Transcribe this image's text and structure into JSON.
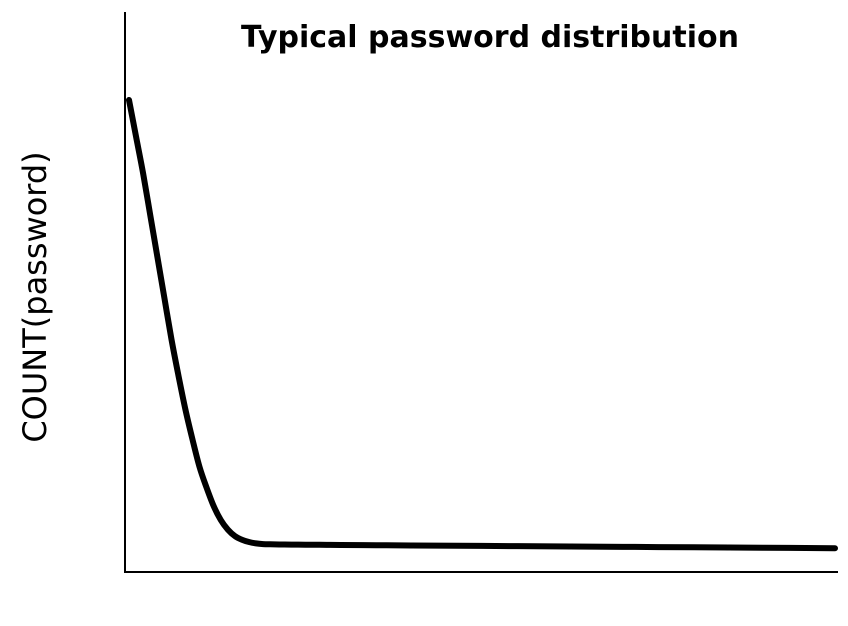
{
  "chart_data": {
    "type": "line",
    "title": "Typical password distribution",
    "xlabel": "",
    "ylabel": "COUNT(password)",
    "grid": false,
    "legend": "none",
    "xlim": [
      0,
      100
    ],
    "ylim": [
      0,
      100
    ],
    "series": [
      {
        "color": "#000000",
        "x": [
          0,
          1,
          2,
          3,
          4,
          5,
          6,
          7,
          8,
          9,
          10,
          11,
          12,
          13,
          14,
          15,
          16,
          17,
          18,
          19,
          20,
          22,
          24,
          26,
          28,
          30,
          35,
          40,
          50,
          60,
          70,
          80,
          90,
          100
        ],
        "y": [
          100,
          92,
          84,
          75,
          66,
          57,
          48,
          40,
          32.5,
          26,
          20,
          15.5,
          11.5,
          8.5,
          6.4,
          5.0,
          4.2,
          3.7,
          3.4,
          3.25,
          3.2,
          3.15,
          3.12,
          3.1,
          3.08,
          3.05,
          3.0,
          2.95,
          2.85,
          2.75,
          2.65,
          2.55,
          2.45,
          2.35
        ]
      }
    ]
  }
}
